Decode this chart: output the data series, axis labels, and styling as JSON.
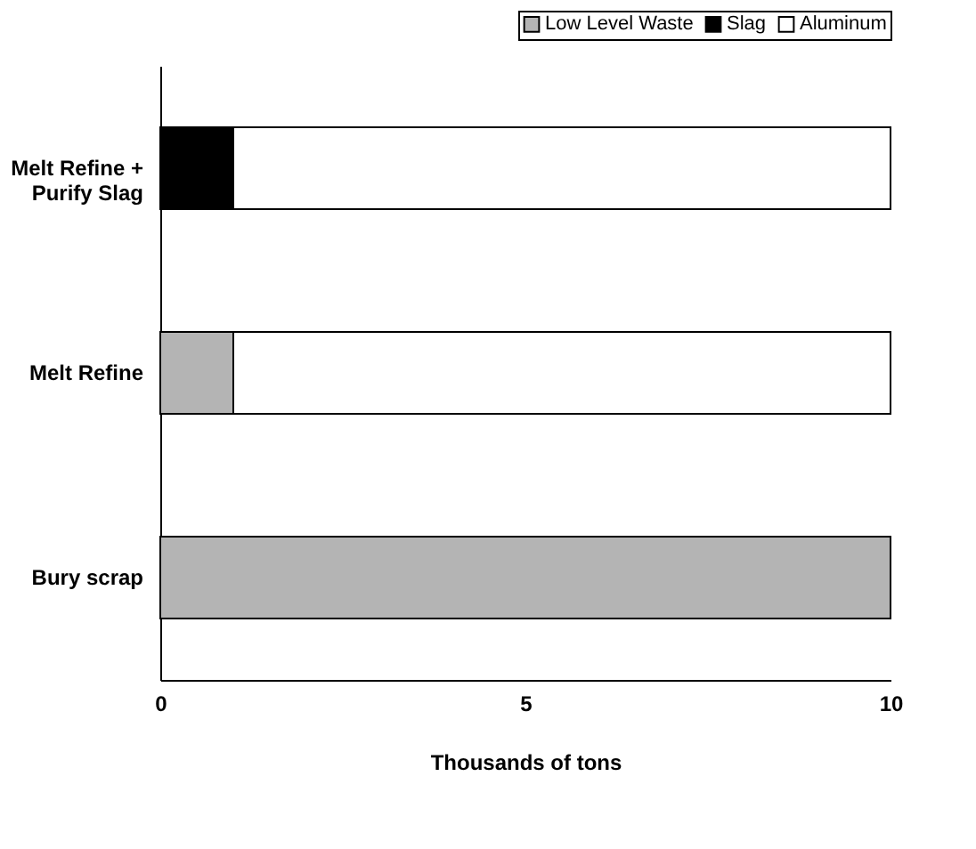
{
  "chart_data": {
    "type": "bar",
    "orientation": "horizontal",
    "stacked": true,
    "xlabel": "Thousands of tons",
    "categories": [
      "Melt Refine + Purify Slag",
      "Melt Refine",
      "Bury scrap"
    ],
    "series": [
      {
        "name": "Low Level Waste",
        "color": "#b4b4b4",
        "values": [
          0,
          1,
          10
        ]
      },
      {
        "name": "Slag",
        "color": "#000000",
        "values": [
          1,
          0,
          0
        ]
      },
      {
        "name": "Aluminum",
        "color": "#ffffff",
        "values": [
          9,
          9,
          0
        ]
      }
    ],
    "xlim": [
      0,
      10
    ],
    "xticks": [
      0,
      5,
      10
    ],
    "grid": false,
    "legend": "top right"
  }
}
